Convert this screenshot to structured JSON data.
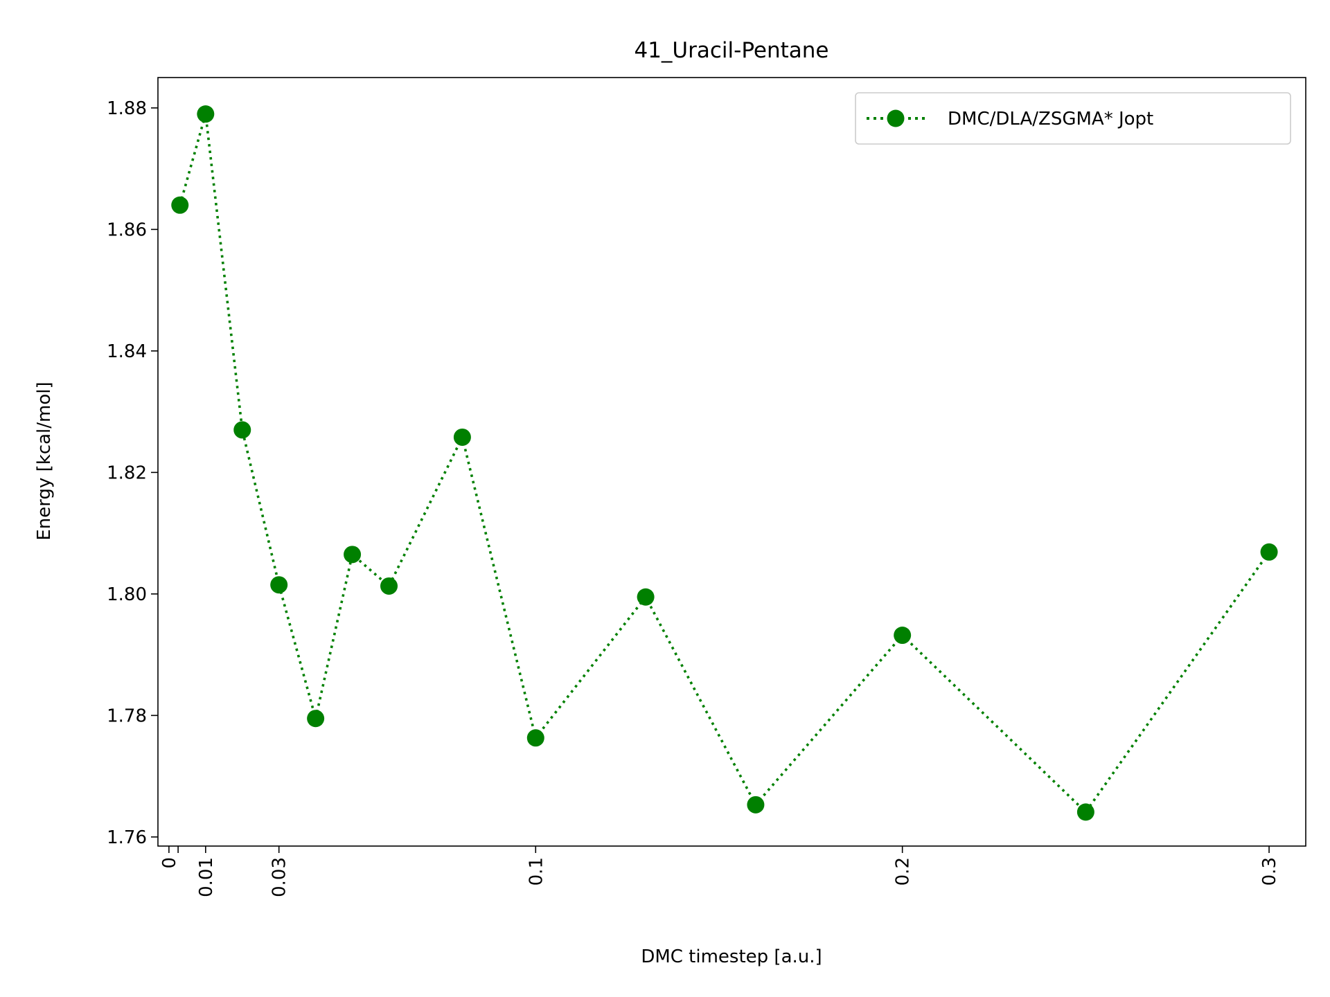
{
  "chart_data": {
    "type": "line",
    "title": "41_Uracil-Pentane",
    "xlabel": "DMC timestep [a.u.]",
    "ylabel": "Energy [kcal/mol]",
    "xlim": [
      -0.003,
      0.31
    ],
    "ylim": [
      1.7585,
      1.885
    ],
    "x_ticks": [
      0,
      0.0025,
      0.01,
      0.03,
      0.1,
      0.2,
      0.3
    ],
    "x_tick_labels": [
      "0",
      "",
      "0.01",
      "0.03",
      "0.1",
      "0.2",
      "0.3"
    ],
    "y_ticks": [
      1.76,
      1.78,
      1.8,
      1.82,
      1.84,
      1.86,
      1.88
    ],
    "y_tick_labels": [
      "1.76",
      "1.78",
      "1.80",
      "1.82",
      "1.84",
      "1.86",
      "1.88"
    ],
    "grid": false,
    "legend_position": "top-right",
    "series": [
      {
        "name": "DMC/DLA/ZSGMA* Jopt",
        "color": "#008000",
        "line_style": "dotted",
        "marker": "circle",
        "x": [
          0.003,
          0.01,
          0.02,
          0.03,
          0.04,
          0.05,
          0.06,
          0.08,
          0.1,
          0.13,
          0.16,
          0.2,
          0.25,
          0.3
        ],
        "y": [
          1.864,
          1.879,
          1.827,
          1.8015,
          1.7795,
          1.8065,
          1.8013,
          1.8258,
          1.7763,
          1.7995,
          1.7653,
          1.7932,
          1.7641,
          1.8069
        ]
      }
    ]
  }
}
